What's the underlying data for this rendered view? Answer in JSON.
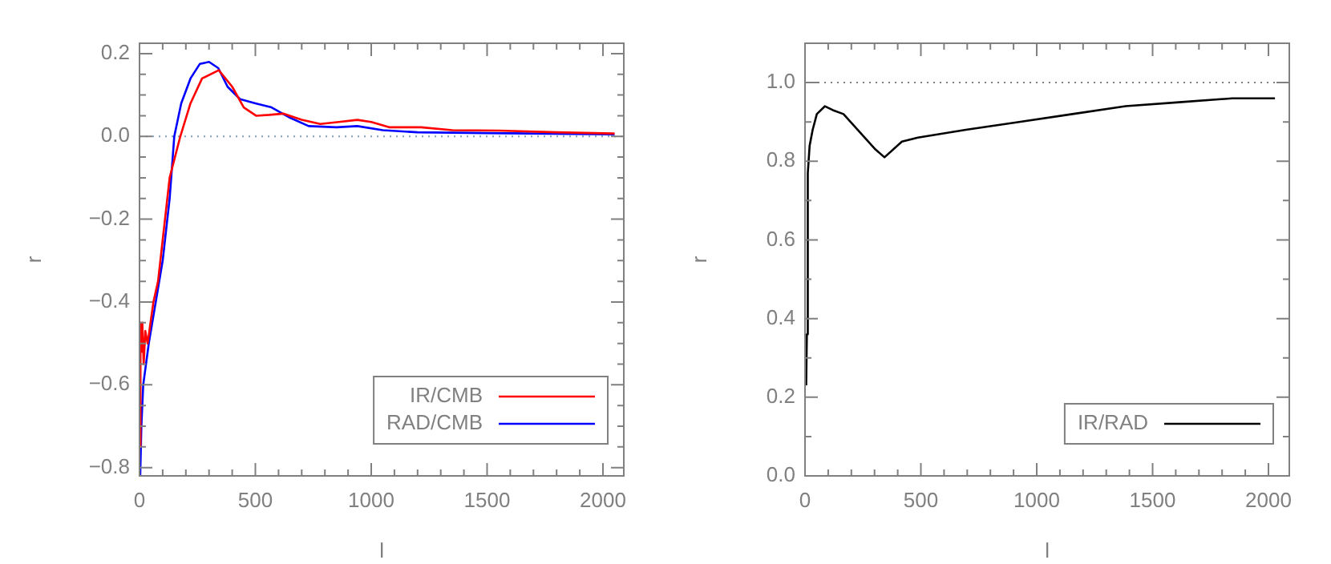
{
  "chart_data": [
    {
      "type": "line",
      "xlabel": "l",
      "ylabel": "r",
      "xlim": [
        0,
        2090
      ],
      "ylim": [
        -0.82,
        0.225
      ],
      "xticks": [
        0,
        {
          "value": 100,
          "label": null
        },
        {
          "value": 200,
          "label": null
        },
        {
          "value": 300,
          "label": null
        },
        {
          "value": 400,
          "label": null
        },
        500,
        {
          "value": 600,
          "label": null
        },
        {
          "value": 700,
          "label": null
        },
        {
          "value": 800,
          "label": null
        },
        {
          "value": 900,
          "label": null
        },
        1000,
        {
          "value": 1100,
          "label": null
        },
        {
          "value": 1200,
          "label": null
        },
        {
          "value": 1300,
          "label": null
        },
        {
          "value": 1400,
          "label": null
        },
        1500,
        {
          "value": 1600,
          "label": null
        },
        {
          "value": 1700,
          "label": null
        },
        {
          "value": 1800,
          "label": null
        },
        {
          "value": 1900,
          "label": null
        },
        2000
      ],
      "yticks": [
        {
          "value": -0.8,
          "label": "−0.8"
        },
        {
          "value": -0.75,
          "label": null
        },
        {
          "value": -0.7,
          "label": null
        },
        {
          "value": -0.65,
          "label": null
        },
        {
          "value": -0.6,
          "label": "−0.6"
        },
        {
          "value": -0.55,
          "label": null
        },
        {
          "value": -0.5,
          "label": null
        },
        {
          "value": -0.45,
          "label": null
        },
        {
          "value": -0.4,
          "label": "−0.4"
        },
        {
          "value": -0.35,
          "label": null
        },
        {
          "value": -0.3,
          "label": null
        },
        {
          "value": -0.25,
          "label": null
        },
        {
          "value": -0.2,
          "label": "−0.2"
        },
        {
          "value": -0.15,
          "label": null
        },
        {
          "value": -0.1,
          "label": null
        },
        {
          "value": -0.05,
          "label": null
        },
        {
          "value": 0,
          "label": "0.0"
        },
        {
          "value": 0.05,
          "label": null
        },
        {
          "value": 0.1,
          "label": null
        },
        {
          "value": 0.15,
          "label": null
        },
        {
          "value": 0.2,
          "label": "0.2"
        }
      ],
      "legend": "bottom right",
      "grid": false,
      "marker": "none",
      "line_style": "solid",
      "ref_lines": [
        {
          "axis": "y",
          "value": 0,
          "color": "#7f9fbf",
          "line_style": "dotted"
        }
      ],
      "series": [
        {
          "name": "IR/CMB",
          "color": "#ff0000",
          "x": [
            2,
            4,
            8,
            12,
            18,
            25,
            35,
            45,
            60,
            80,
            110,
            130,
            176,
            220,
            270,
            342,
            400,
            450,
            503,
            560,
            620,
            700,
            780,
            860,
            940,
            1000,
            1080,
            1215,
            1350,
            1550,
            1800,
            2050
          ],
          "values": [
            -0.75,
            -0.45,
            -0.52,
            -0.45,
            -0.55,
            -0.47,
            -0.5,
            -0.46,
            -0.4,
            -0.35,
            -0.2,
            -0.1,
            0.0,
            0.08,
            0.14,
            0.16,
            0.12,
            0.07,
            0.05,
            0.052,
            0.055,
            0.04,
            0.03,
            0.035,
            0.04,
            0.035,
            0.022,
            0.022,
            0.015,
            0.014,
            0.01,
            0.007
          ]
        },
        {
          "name": "RAD/CMB",
          "color": "#0000ff",
          "x": [
            3,
            8,
            16,
            40,
            70,
            100,
            130,
            150,
            180,
            220,
            260,
            300,
            340,
            380,
            434,
            500,
            570,
            650,
            730,
            850,
            940,
            1050,
            1200,
            1500,
            2050
          ],
          "values": [
            -0.82,
            -0.7,
            -0.6,
            -0.5,
            -0.4,
            -0.3,
            -0.15,
            0.0,
            0.08,
            0.14,
            0.175,
            0.18,
            0.165,
            0.12,
            0.09,
            0.08,
            0.07,
            0.045,
            0.025,
            0.022,
            0.025,
            0.015,
            0.01,
            0.008,
            0.005
          ]
        }
      ]
    },
    {
      "type": "line",
      "xlabel": "l",
      "ylabel": "r",
      "xlim": [
        0,
        2090
      ],
      "ylim": [
        0,
        1.1
      ],
      "xticks": [
        0,
        {
          "value": 100,
          "label": null
        },
        {
          "value": 200,
          "label": null
        },
        {
          "value": 300,
          "label": null
        },
        {
          "value": 400,
          "label": null
        },
        500,
        {
          "value": 600,
          "label": null
        },
        {
          "value": 700,
          "label": null
        },
        {
          "value": 800,
          "label": null
        },
        {
          "value": 900,
          "label": null
        },
        1000,
        {
          "value": 1100,
          "label": null
        },
        {
          "value": 1200,
          "label": null
        },
        {
          "value": 1300,
          "label": null
        },
        {
          "value": 1400,
          "label": null
        },
        1500,
        {
          "value": 1600,
          "label": null
        },
        {
          "value": 1700,
          "label": null
        },
        {
          "value": 1800,
          "label": null
        },
        {
          "value": 1900,
          "label": null
        },
        2000
      ],
      "yticks": [
        {
          "value": 0,
          "label": "0.0"
        },
        {
          "value": 0.1,
          "label": null
        },
        {
          "value": 0.2,
          "label": "0.2"
        },
        {
          "value": 0.3,
          "label": null
        },
        {
          "value": 0.4,
          "label": "0.4"
        },
        {
          "value": 0.5,
          "label": null
        },
        {
          "value": 0.6,
          "label": "0.6"
        },
        {
          "value": 0.7,
          "label": null
        },
        {
          "value": 0.8,
          "label": "0.8"
        },
        {
          "value": 0.9,
          "label": null
        },
        {
          "value": 1.0,
          "label": "1.0"
        }
      ],
      "legend": "bottom right",
      "grid": false,
      "marker": "none",
      "line_style": "solid",
      "ref_lines": [
        {
          "axis": "y",
          "value": 1.0,
          "color": "#808080",
          "line_style": "dotted"
        }
      ],
      "series": [
        {
          "name": "IR/RAD",
          "color": "#000000",
          "x": [
            5,
            8,
            12,
            20,
            33,
            51,
            86,
            120,
            166,
            212,
            258,
            304,
            343,
            418,
            487,
            694,
            924,
            1154,
            1384,
            1614,
            1844,
            2028
          ],
          "values": [
            0.23,
            0.36,
            0.77,
            0.84,
            0.88,
            0.92,
            0.94,
            0.93,
            0.92,
            0.89,
            0.86,
            0.83,
            0.81,
            0.85,
            0.86,
            0.88,
            0.9,
            0.92,
            0.94,
            0.95,
            0.96,
            0.96
          ]
        }
      ]
    }
  ]
}
